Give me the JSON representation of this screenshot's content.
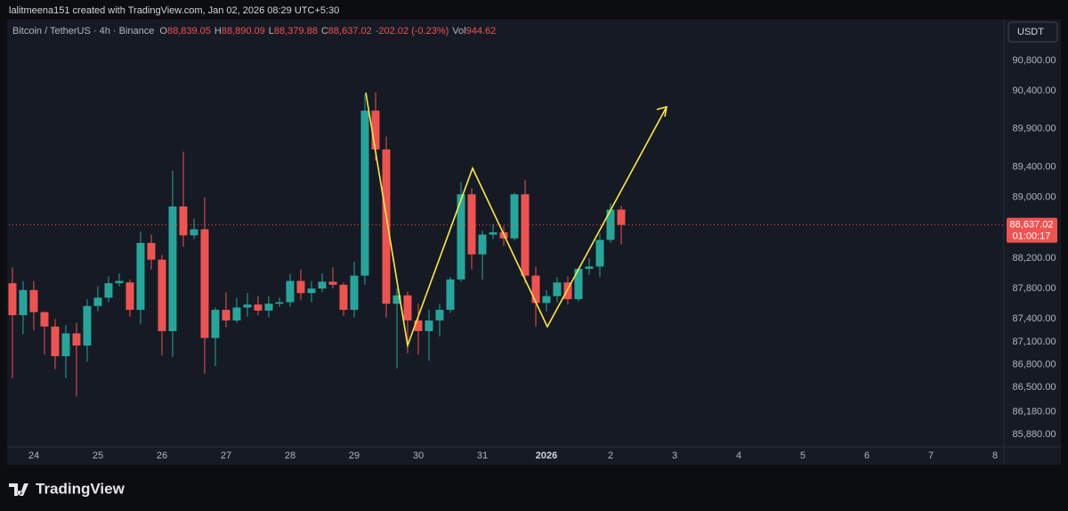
{
  "header": {
    "text": "lalitmeena151 created with TradingView.com, Jan 02, 2026 08:29 UTC+5:30"
  },
  "chart_data": {
    "type": "candlestick",
    "title": "Bitcoin / TetherUS · 4h · Binance",
    "legend": [
      {
        "label": "O",
        "text": "88,839.05"
      },
      {
        "label": "H",
        "text": "88,890.09"
      },
      {
        "label": "L",
        "text": "88,379.88"
      },
      {
        "label": "C",
        "text": "88,637.02"
      },
      {
        "label": "",
        "text": "-202.02 (-0.23%)"
      },
      {
        "label": "Vol",
        "text": "944.62"
      }
    ],
    "currency": "USDT",
    "up_color": "#26a69a",
    "down_color": "#ef5350",
    "open": [
      87870,
      87450,
      87780,
      87490,
      87300,
      86910,
      87210,
      87050,
      87570,
      87680,
      87870,
      87880,
      87520,
      88400,
      88180,
      87240,
      88880,
      88500,
      88580,
      87150,
      87520,
      87380,
      87550,
      87590,
      87510,
      87600,
      87620,
      87900,
      87740,
      87800,
      87890,
      87850,
      87520,
      87970,
      90140,
      89630,
      87600,
      87710,
      87380,
      87240,
      87380,
      87520,
      87920,
      89040,
      88250,
      88510,
      88540,
      88460,
      89040,
      87970,
      87610,
      87700,
      87880,
      87660,
      88060,
      88090,
      88440,
      88839.05
    ],
    "high": [
      88080,
      87900,
      87900,
      87500,
      87400,
      87320,
      87350,
      87660,
      87830,
      87960,
      88000,
      87920,
      88550,
      88510,
      88240,
      89350,
      89600,
      88720,
      89000,
      87550,
      87750,
      87680,
      87740,
      87700,
      87700,
      87680,
      87990,
      88050,
      87900,
      88000,
      88080,
      87880,
      88150,
      90350,
      90380,
      89800,
      87800,
      87760,
      87600,
      87520,
      87600,
      87950,
      89200,
      89120,
      88560,
      88650,
      88620,
      89060,
      89230,
      88090,
      87780,
      87950,
      87960,
      88070,
      88200,
      88520,
      88920,
      88890.09
    ],
    "low": [
      86620,
      87200,
      87250,
      86930,
      86740,
      86620,
      86380,
      86840,
      87500,
      87620,
      87830,
      87430,
      87330,
      88050,
      86920,
      86900,
      88350,
      88450,
      86680,
      86780,
      87290,
      87350,
      87430,
      87450,
      87420,
      87560,
      87560,
      87650,
      87620,
      87750,
      87800,
      87440,
      87420,
      87850,
      89480,
      87420,
      86750,
      86950,
      86930,
      86850,
      87170,
      87480,
      87890,
      88050,
      87920,
      88450,
      88360,
      88430,
      87870,
      87300,
      87500,
      87620,
      87590,
      87630,
      87980,
      87950,
      88400,
      88379.88
    ],
    "close": [
      87450,
      87780,
      87490,
      87300,
      86910,
      87210,
      87050,
      87570,
      87680,
      87870,
      87900,
      87520,
      88400,
      88180,
      87240,
      88880,
      88500,
      88580,
      87150,
      87520,
      87380,
      87550,
      87590,
      87510,
      87600,
      87620,
      87900,
      87740,
      87800,
      87890,
      87850,
      87520,
      87970,
      90140,
      89630,
      87600,
      87710,
      87380,
      87240,
      87380,
      87520,
      87920,
      89040,
      88250,
      88510,
      88540,
      88460,
      89040,
      87970,
      87610,
      87700,
      87880,
      87660,
      88060,
      88090,
      88440,
      88839.05,
      88637.02
    ],
    "xlim": [
      -0.33,
      92.83
    ],
    "xticks": [
      {
        "value": 2,
        "label": "24"
      },
      {
        "value": 8,
        "label": "25"
      },
      {
        "value": 14,
        "label": "26"
      },
      {
        "value": 20,
        "label": "27"
      },
      {
        "value": 26,
        "label": "28"
      },
      {
        "value": 32,
        "label": "29"
      },
      {
        "value": 38,
        "label": "30"
      },
      {
        "value": 44,
        "label": "31"
      },
      {
        "value": 50,
        "label": "2026"
      },
      {
        "value": 56,
        "label": "2"
      },
      {
        "value": 62,
        "label": "3"
      },
      {
        "value": 68,
        "label": "4"
      },
      {
        "value": 74,
        "label": "5"
      },
      {
        "value": 80,
        "label": "6"
      },
      {
        "value": 86,
        "label": "7"
      },
      {
        "value": 92,
        "label": "8"
      }
    ],
    "ylim": [
      85740,
      91362
    ],
    "yticks": [
      {
        "value": 90800,
        "label": "90,800.00"
      },
      {
        "value": 90400,
        "label": "90,400.00"
      },
      {
        "value": 89900,
        "label": "89,900.00"
      },
      {
        "value": 89400,
        "label": "89,400.00"
      },
      {
        "value": 89000,
        "label": "89,000.00"
      },
      {
        "value": 88200,
        "label": "88,200.00"
      },
      {
        "value": 87800,
        "label": "87,800.00"
      },
      {
        "value": 87400,
        "label": "87,400.00"
      },
      {
        "value": 87100,
        "label": "87,100.00"
      },
      {
        "value": 86800,
        "label": "86,800.00"
      },
      {
        "value": 86500,
        "label": "86,500.00"
      },
      {
        "value": 86180,
        "label": "86,180.00"
      },
      {
        "value": 85880,
        "label": "85,880.00"
      }
    ],
    "last_price": {
      "value": 88637.02,
      "label": "88,637.02",
      "countdown": "01:00:17"
    },
    "grid": false
  },
  "footer": {
    "brand": "TradingView"
  }
}
